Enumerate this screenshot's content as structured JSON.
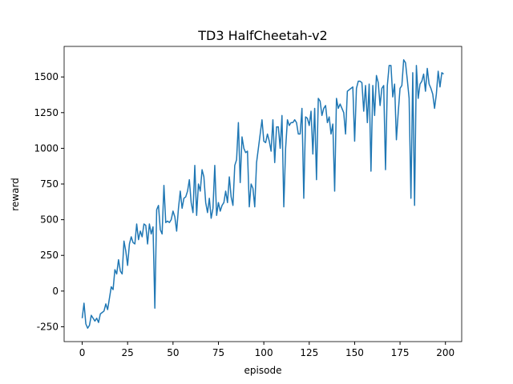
{
  "chart_data": {
    "type": "line",
    "title": "TD3 HalfCheetah-v2",
    "x_label": "episode",
    "y_label": "reward",
    "color": "#1f77b4",
    "x": [
      0,
      1,
      2,
      3,
      4,
      5,
      6,
      7,
      8,
      9,
      10,
      11,
      12,
      13,
      14,
      15,
      16,
      17,
      18,
      19,
      20,
      21,
      22,
      23,
      24,
      25,
      26,
      27,
      28,
      29,
      30,
      31,
      32,
      33,
      34,
      35,
      36,
      37,
      38,
      39,
      40,
      41,
      42,
      43,
      44,
      45,
      46,
      47,
      48,
      49,
      50,
      51,
      52,
      53,
      54,
      55,
      56,
      57,
      58,
      59,
      60,
      61,
      62,
      63,
      64,
      65,
      66,
      67,
      68,
      69,
      70,
      71,
      72,
      73,
      74,
      75,
      76,
      77,
      78,
      79,
      80,
      81,
      82,
      83,
      84,
      85,
      86,
      87,
      88,
      89,
      90,
      91,
      92,
      93,
      94,
      95,
      96,
      97,
      98,
      99,
      100,
      101,
      102,
      103,
      104,
      105,
      106,
      107,
      108,
      109,
      110,
      111,
      112,
      113,
      114,
      115,
      116,
      117,
      118,
      119,
      120,
      121,
      122,
      123,
      124,
      125,
      126,
      127,
      128,
      129,
      130,
      131,
      132,
      133,
      134,
      135,
      136,
      137,
      138,
      139,
      140,
      141,
      142,
      143,
      144,
      145,
      146,
      147,
      148,
      149,
      150,
      151,
      152,
      153,
      154,
      155,
      156,
      157,
      158,
      159,
      160,
      161,
      162,
      163,
      164,
      165,
      166,
      167,
      168,
      169,
      170,
      171,
      172,
      173,
      174,
      175,
      176,
      177,
      178,
      179,
      180,
      181,
      182,
      183,
      184,
      185,
      186,
      187,
      188,
      189,
      190,
      191,
      192,
      193,
      194,
      195,
      196,
      197,
      198,
      199
    ],
    "values": [
      -190,
      -85,
      -230,
      -260,
      -240,
      -170,
      -190,
      -210,
      -190,
      -220,
      -160,
      -150,
      -140,
      -90,
      -130,
      -50,
      30,
      10,
      150,
      120,
      220,
      140,
      120,
      350,
      280,
      180,
      330,
      380,
      340,
      330,
      470,
      360,
      420,
      380,
      470,
      460,
      330,
      470,
      400,
      450,
      -120,
      570,
      600,
      430,
      400,
      740,
      480,
      490,
      480,
      500,
      560,
      520,
      420,
      580,
      700,
      580,
      650,
      660,
      700,
      780,
      620,
      550,
      880,
      530,
      750,
      700,
      850,
      800,
      620,
      550,
      650,
      510,
      580,
      880,
      530,
      620,
      560,
      600,
      620,
      700,
      620,
      800,
      660,
      600,
      880,
      920,
      1180,
      760,
      1080,
      1000,
      970,
      980,
      590,
      750,
      720,
      590,
      900,
      1000,
      1100,
      1200,
      1050,
      1040,
      1100,
      1050,
      980,
      1200,
      900,
      1150,
      1150,
      1000,
      1230,
      590,
      1000,
      1200,
      1160,
      1180,
      1180,
      1200,
      1180,
      1100,
      1100,
      1280,
      650,
      1220,
      1210,
      1160,
      1260,
      960,
      1280,
      780,
      1350,
      1330,
      1230,
      1280,
      1300,
      1180,
      1220,
      1100,
      1170,
      700,
      1350,
      1280,
      1310,
      1280,
      1250,
      1100,
      1400,
      1410,
      1420,
      1430,
      1050,
      1420,
      1470,
      1470,
      1460,
      1260,
      1440,
      1180,
      1450,
      840,
      1440,
      1230,
      1510,
      1460,
      1300,
      1420,
      1440,
      850,
      1440,
      1580,
      1580,
      1360,
      1450,
      1060,
      1250,
      1420,
      1440,
      1620,
      1600,
      1480,
      1350,
      650,
      1530,
      600,
      1580,
      1350,
      1450,
      1470,
      1520,
      1400,
      1560,
      1450,
      1420,
      1380,
      1280,
      1380,
      1540,
      1430,
      1530,
      1520
    ],
    "xlim": [
      -9.95,
      208.95
    ],
    "ylim": [
      -354,
      1714
    ],
    "xticks": [
      0,
      25,
      50,
      75,
      100,
      125,
      150,
      175,
      200
    ],
    "yticks": [
      -250,
      0,
      250,
      500,
      750,
      1000,
      1250,
      1500
    ]
  }
}
